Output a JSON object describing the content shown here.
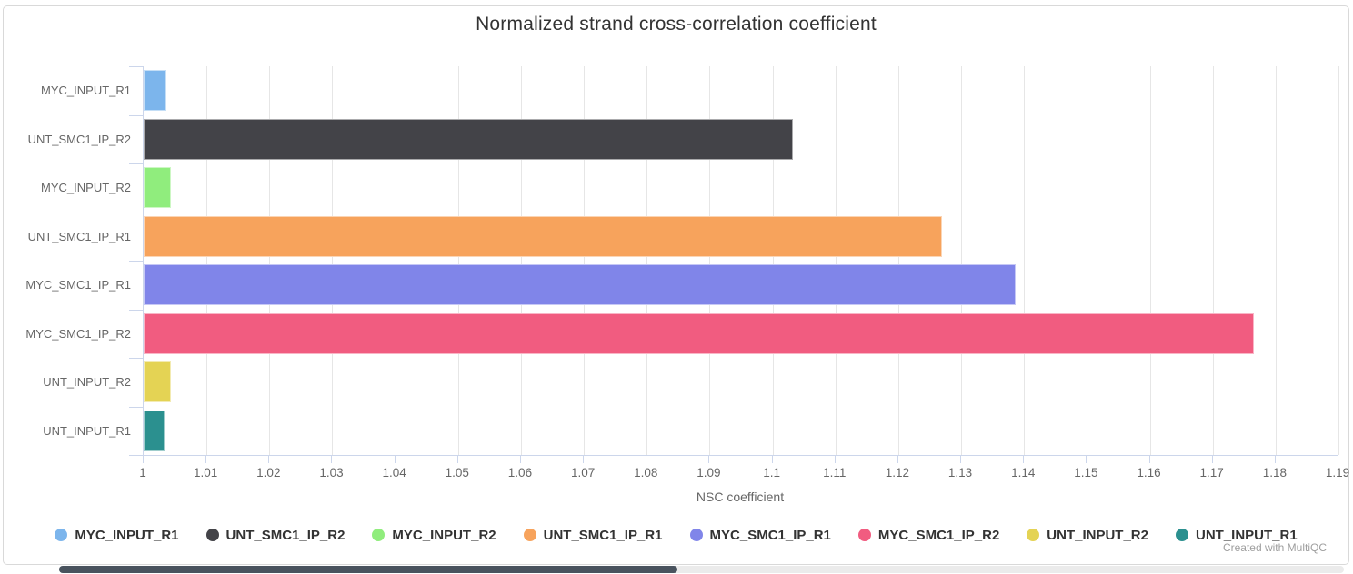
{
  "title": "Normalized strand cross-correlation coefficient",
  "credit": "Created with MultiQC",
  "colors": {
    "axis_line": "#ccd6eb",
    "gridline": "#e6e6e6",
    "label_text": "#666666",
    "title_text": "#333333",
    "legend_text": "#333333",
    "credit_text": "#9e9e9e",
    "scrollbar_thumb": "#49535e",
    "scrollbar_track": "#ebebeb"
  },
  "chart_data": {
    "type": "bar",
    "orientation": "horizontal",
    "title": "Normalized strand cross-correlation coefficient",
    "xlabel": "NSC coefficient",
    "ylabel": "",
    "xlim": [
      1.0,
      1.19
    ],
    "xtick_step": 0.01,
    "grid": true,
    "legend_position": "bottom",
    "categories": [
      "MYC_INPUT_R1",
      "UNT_SMC1_IP_R2",
      "MYC_INPUT_R2",
      "UNT_SMC1_IP_R1",
      "MYC_SMC1_IP_R1",
      "MYC_SMC1_IP_R2",
      "UNT_INPUT_R2",
      "UNT_INPUT_R1"
    ],
    "values": [
      1.0036,
      1.1032,
      1.0044,
      1.127,
      1.1387,
      1.1765,
      1.0044,
      1.0033
    ],
    "colors": [
      "#7cb5ec",
      "#434348",
      "#90ed7d",
      "#f7a35c",
      "#8085e9",
      "#f15c80",
      "#e4d354",
      "#2b908f"
    ],
    "xtick_labels": [
      "1",
      "1.01",
      "1.02",
      "1.03",
      "1.04",
      "1.05",
      "1.06",
      "1.07",
      "1.08",
      "1.09",
      "1.1",
      "1.11",
      "1.12",
      "1.13",
      "1.14",
      "1.15",
      "1.16",
      "1.17",
      "1.18",
      "1.19"
    ],
    "legend": [
      {
        "label": "MYC_INPUT_R1",
        "color": "#7cb5ec"
      },
      {
        "label": "UNT_SMC1_IP_R2",
        "color": "#434348"
      },
      {
        "label": "MYC_INPUT_R2",
        "color": "#90ed7d"
      },
      {
        "label": "UNT_SMC1_IP_R1",
        "color": "#f7a35c"
      },
      {
        "label": "MYC_SMC1_IP_R1",
        "color": "#8085e9"
      },
      {
        "label": "MYC_SMC1_IP_R2",
        "color": "#f15c80"
      },
      {
        "label": "UNT_INPUT_R2",
        "color": "#e4d354"
      },
      {
        "label": "UNT_INPUT_R1",
        "color": "#2b908f"
      }
    ]
  }
}
